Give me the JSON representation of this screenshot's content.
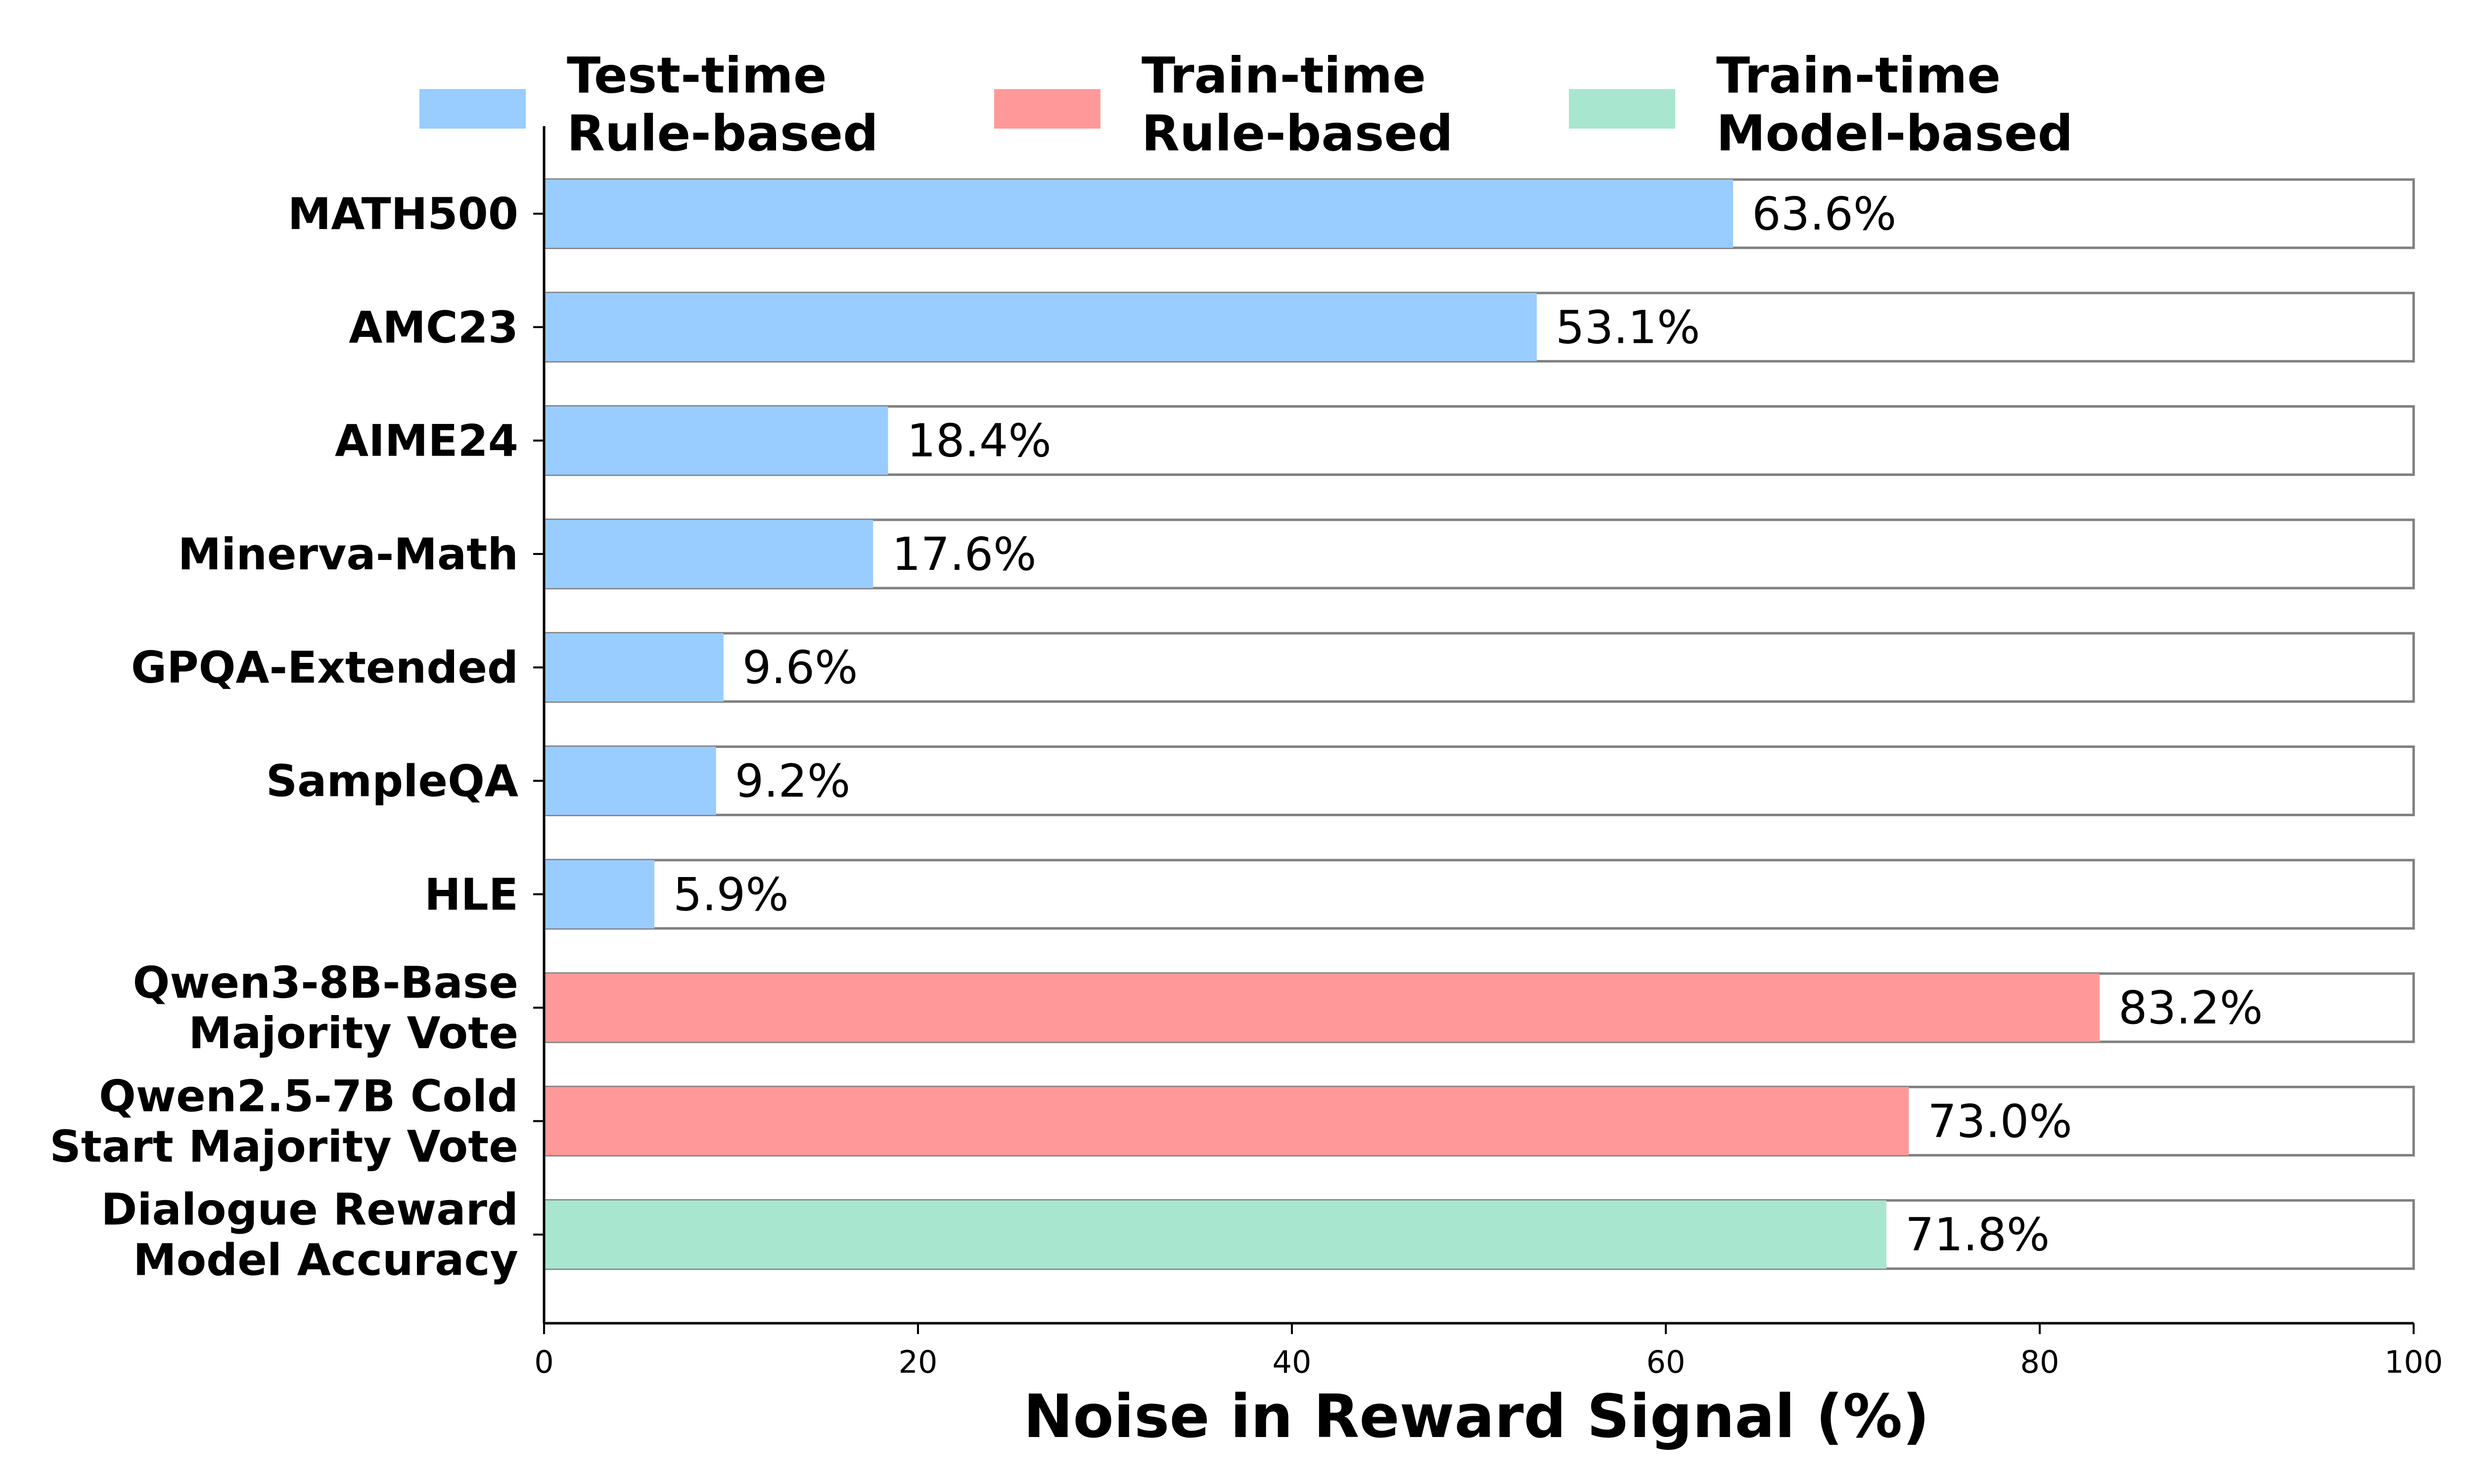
{
  "chart_data": {
    "type": "bar",
    "orientation": "horizontal",
    "categories": [
      [
        "MATH500"
      ],
      [
        "AMC23"
      ],
      [
        "AIME24"
      ],
      [
        "Minerva-Math"
      ],
      [
        "GPQA-Extended"
      ],
      [
        "SampleQA"
      ],
      [
        "HLE"
      ],
      [
        "Qwen3-8B-Base",
        "Majority Vote"
      ],
      [
        "Qwen2.5-7B Cold",
        "Start Majority Vote"
      ],
      [
        "Dialogue Reward",
        "Model Accuracy"
      ]
    ],
    "values": [
      63.6,
      53.1,
      18.4,
      17.6,
      9.6,
      9.2,
      5.9,
      83.2,
      73.0,
      71.8
    ],
    "value_labels": [
      "63.6%",
      "53.1%",
      "18.4%",
      "17.6%",
      "9.6%",
      "9.2%",
      "5.9%",
      "83.2%",
      "73.0%",
      "71.8%"
    ],
    "groups": [
      0,
      0,
      0,
      0,
      0,
      0,
      0,
      1,
      1,
      2
    ],
    "legend": [
      {
        "lines": [
          "Test-time",
          "Rule-based"
        ],
        "color": "#99ccff"
      },
      {
        "lines": [
          "Train-time",
          "Rule-based"
        ],
        "color": "#ff9999"
      },
      {
        "lines": [
          "Train-time",
          "Model-based"
        ],
        "color": "#a8e6cf"
      }
    ],
    "legend_position": "top",
    "xlabel": "Noise in Reward Signal (%)",
    "ylabel": "",
    "xlim": [
      0,
      100
    ],
    "xticks": [
      0,
      20,
      40,
      60,
      80,
      100
    ],
    "xtick_labels": [
      "0",
      "20",
      "40",
      "60",
      "80",
      "100"
    ],
    "background_bars": true,
    "background_max": 100,
    "grid": false
  }
}
